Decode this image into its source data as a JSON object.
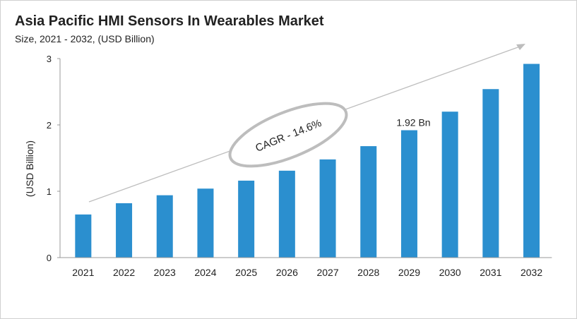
{
  "chart_data": {
    "type": "bar",
    "title": "Asia Pacific HMI Sensors In Wearables Market",
    "subtitle": "Size, 2021 - 2032, (USD Billion)",
    "xlabel": "",
    "ylabel": "(USD Billion)",
    "categories": [
      "2021",
      "2022",
      "2023",
      "2024",
      "2025",
      "2026",
      "2027",
      "2028",
      "2029",
      "2030",
      "2031",
      "2032"
    ],
    "values": [
      0.65,
      0.82,
      0.94,
      1.04,
      1.16,
      1.31,
      1.48,
      1.68,
      1.92,
      2.2,
      2.54,
      2.92
    ],
    "ylim": [
      0,
      3
    ],
    "yticks": [
      "0",
      "1",
      "2",
      "3"
    ],
    "grid": false,
    "bar_color": "#2b8fcf",
    "annotations": {
      "cagr": "CAGR - 14.6%",
      "value_label": "1.92 Bn",
      "value_label_category": "2029"
    }
  }
}
